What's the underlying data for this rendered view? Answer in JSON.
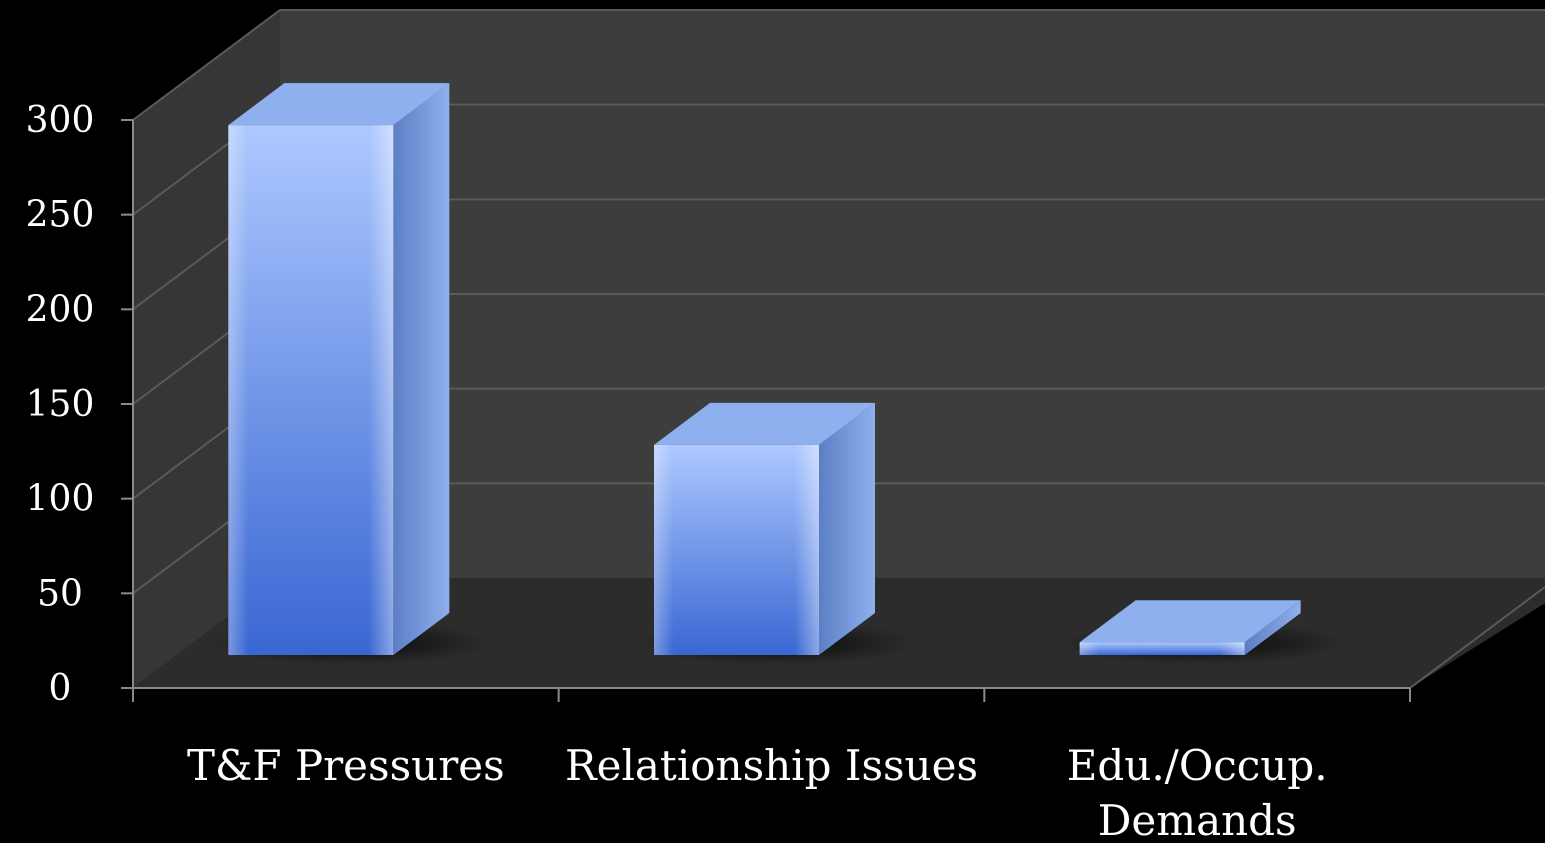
{
  "chart_data": {
    "type": "bar",
    "categories": [
      "T&F Pressures",
      "Relationship Issues",
      "Edu./Occup. Demands"
    ],
    "category_lines": [
      [
        "T&F Pressures"
      ],
      [
        "Relationship Issues"
      ],
      [
        "Edu./Occup.",
        "Demands"
      ]
    ],
    "values": [
      290,
      115,
      7
    ],
    "ylim": [
      0,
      300
    ],
    "yticks": [
      0,
      50,
      100,
      150,
      200,
      250,
      300
    ],
    "title": "",
    "xlabel": "",
    "ylabel": "",
    "grid": true,
    "legend": "none",
    "style": "3d-column"
  },
  "colors": {
    "background": "#000000",
    "back_wall": "#3d3d3d",
    "side_wall": "#363636",
    "floor": "#2c2c2c",
    "grid_line": "#5a5a5a",
    "axis_line": "#8a8a8a",
    "bar_front_light": "#a9c6ff",
    "bar_front_dark": "#2f5fd0",
    "bar_side": "#5c7ec4",
    "bar_top": "#8fb0ee",
    "text": "#ffffff"
  }
}
